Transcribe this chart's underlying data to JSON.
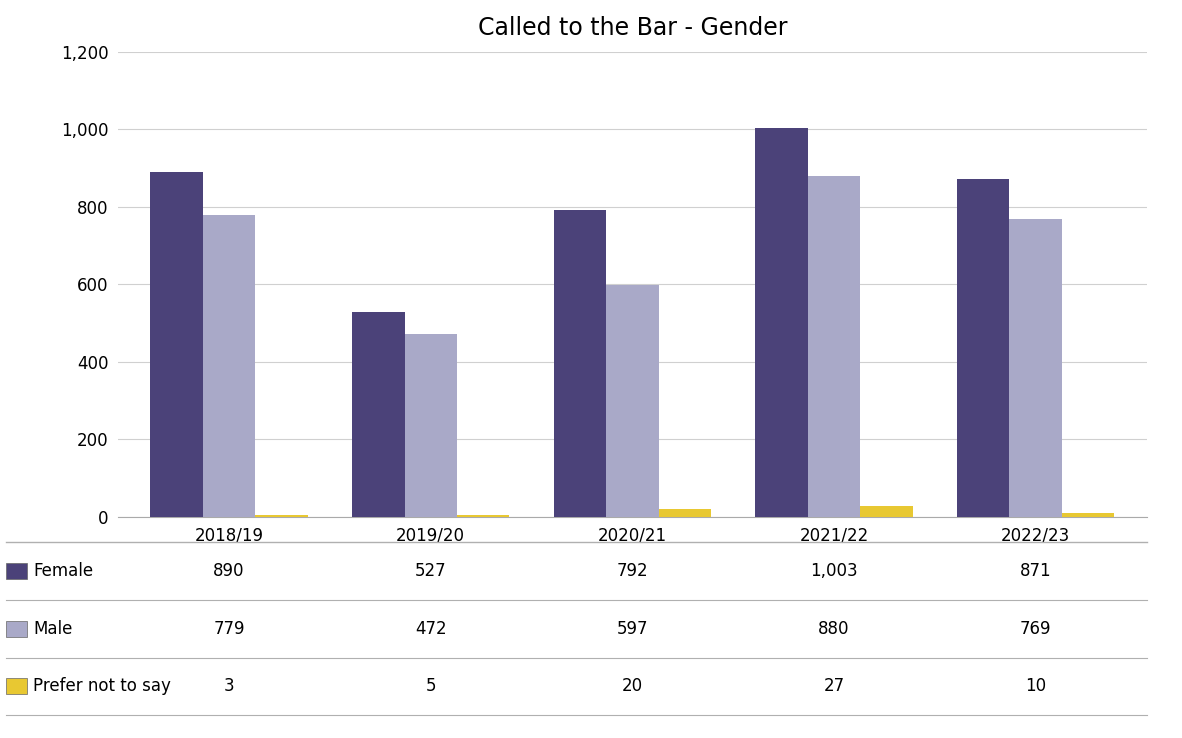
{
  "title": "Called to the Bar - Gender",
  "categories": [
    "2018/19",
    "2019/20",
    "2020/21",
    "2021/22",
    "2022/23"
  ],
  "series": {
    "Female": [
      890,
      527,
      792,
      1003,
      871
    ],
    "Male": [
      779,
      472,
      597,
      880,
      769
    ],
    "Prefer not to say": [
      3,
      5,
      20,
      27,
      10
    ]
  },
  "colors": {
    "Female": "#4B4279",
    "Male": "#A9A9C8",
    "Prefer not to say": "#E8C832"
  },
  "ylim": [
    0,
    1200
  ],
  "yticks": [
    0,
    200,
    400,
    600,
    800,
    1000,
    1200
  ],
  "ytick_labels": [
    "0",
    "200",
    "400",
    "600",
    "800",
    "1,000",
    "1,200"
  ],
  "bar_width": 0.26,
  "title_fontsize": 17,
  "tick_fontsize": 12,
  "legend_fontsize": 12,
  "table_fontsize": 12,
  "background_color": "#ffffff",
  "grid_color": "#d0d0d0"
}
